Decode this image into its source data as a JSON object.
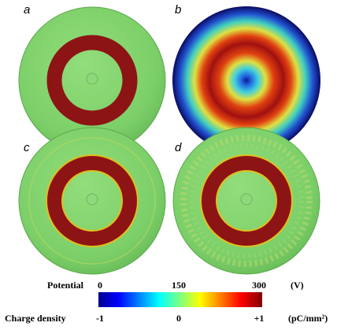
{
  "panels": [
    {
      "label": "a"
    },
    {
      "label": "b"
    },
    {
      "label": "c"
    },
    {
      "label": "d"
    }
  ],
  "colorbar": {
    "potential": {
      "title": "Potential",
      "ticks": [
        "0",
        "150",
        "300"
      ],
      "unit": "(V)"
    },
    "charge": {
      "title": "Charge density",
      "ticks": [
        "-1",
        "0",
        "+1"
      ],
      "unit": "(pC/mm²)"
    }
  }
}
